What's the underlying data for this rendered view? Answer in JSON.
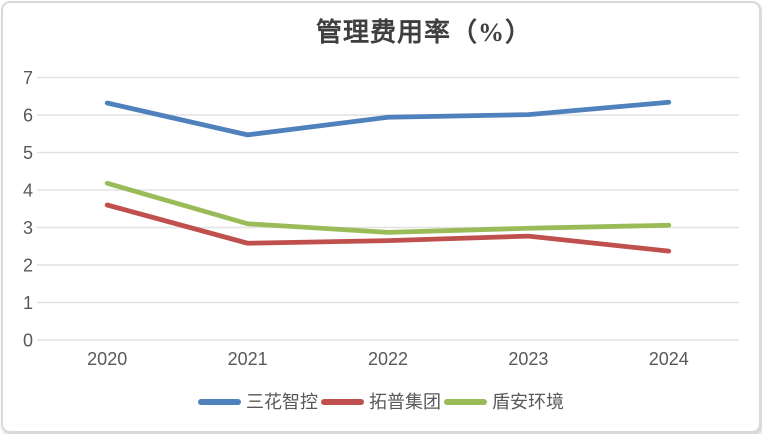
{
  "chart_data": {
    "type": "line",
    "title": "管理费用率（%）",
    "categories": [
      "2020",
      "2021",
      "2022",
      "2023",
      "2024"
    ],
    "series": [
      {
        "name": "三花智控",
        "color": "#4F81BD",
        "values": [
          6.32,
          5.47,
          5.94,
          6.01,
          6.34
        ]
      },
      {
        "name": "拓普集团",
        "color": "#C0504D",
        "values": [
          3.6,
          2.58,
          2.65,
          2.77,
          2.37
        ]
      },
      {
        "name": "盾安环境",
        "color": "#9BBB59",
        "values": [
          4.18,
          3.1,
          2.87,
          2.98,
          3.06
        ]
      }
    ],
    "xlabel": "",
    "ylabel": "",
    "ylim": [
      0,
      7
    ],
    "yticks": [
      0,
      1,
      2,
      3,
      4,
      5,
      6,
      7
    ],
    "grid": true,
    "legend_position": "bottom",
    "styles": {
      "grid_color": "#e2e2e2",
      "tick_label_color": "#595959",
      "title_color": "#3f3f3f",
      "line_width": 4.8
    }
  }
}
